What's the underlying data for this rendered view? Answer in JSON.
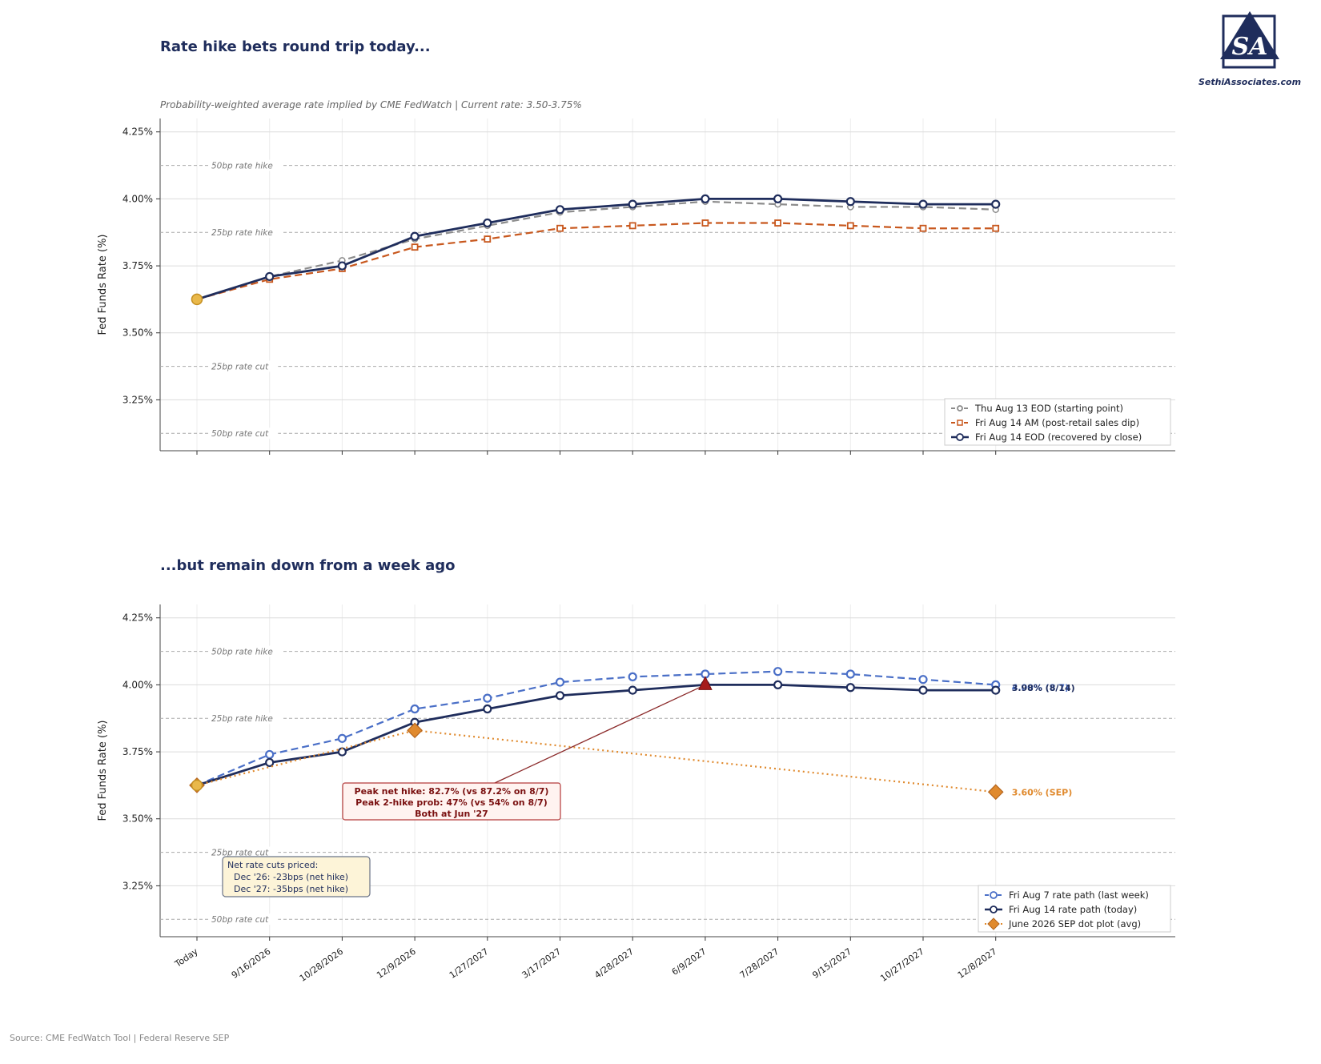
{
  "colors": {
    "navy": "#1f2d5c",
    "gray": "#8c8c8c",
    "orange": "#c8581e",
    "blue": "#4a6fc7",
    "sep": "#e08a2e",
    "gold": "#e9b84a",
    "peak": "#a61c1c"
  },
  "header": {
    "title_top": "Rate hike bets round trip today...",
    "subtitle": "Probability-weighted average rate implied by CME FedWatch  |  Current rate: 3.50-3.75%",
    "title_bottom": "...but remain down from a week ago",
    "source": "Source: CME FedWatch Tool  |  Federal Reserve SEP"
  },
  "logo": {
    "text": "SethiAssociates.com",
    "mark": "SA",
    "icon": "sethi-associates-logo-icon"
  },
  "chart_data": [
    {
      "type": "line",
      "ylabel": "Fed Funds Rate (%)",
      "ylim": [
        3.06,
        4.3
      ],
      "yticks": [
        "3.25%",
        "3.50%",
        "3.75%",
        "4.00%",
        "4.25%"
      ],
      "ytick_values": [
        3.25,
        3.5,
        3.75,
        4.0,
        4.25
      ],
      "x": [
        "Today",
        "9/16/2026",
        "10/28/2026",
        "12/9/2026",
        "1/27/2027",
        "3/17/2027",
        "4/28/2027",
        "6/9/2027",
        "7/28/2027",
        "9/15/2027",
        "10/27/2027",
        "12/8/2027"
      ],
      "x_labels_shown": false,
      "grid": true,
      "ref_lines": [
        {
          "value": 4.125,
          "label": "50bp rate hike"
        },
        {
          "value": 3.875,
          "label": "25bp rate hike"
        },
        {
          "value": 3.375,
          "label": "25bp rate cut"
        },
        {
          "value": 3.125,
          "label": "50bp rate cut"
        }
      ],
      "series": [
        {
          "name": "Thu Aug 13 EOD (starting point)",
          "color": "#8c8c8c",
          "style": "dashed",
          "marker": "circle-small",
          "values": [
            3.625,
            3.71,
            3.77,
            3.85,
            3.9,
            3.95,
            3.97,
            3.99,
            3.98,
            3.97,
            3.97,
            3.96
          ]
        },
        {
          "name": "Fri Aug 14 AM (post-retail sales dip)",
          "color": "#c8581e",
          "style": "dashed",
          "marker": "square",
          "values": [
            3.625,
            3.7,
            3.74,
            3.82,
            3.85,
            3.89,
            3.9,
            3.91,
            3.91,
            3.9,
            3.89,
            3.89
          ]
        },
        {
          "name": "Fri Aug 14 EOD (recovered by close)",
          "color": "#1f2d5c",
          "style": "solid",
          "marker": "circle",
          "values": [
            3.625,
            3.71,
            3.75,
            3.86,
            3.91,
            3.96,
            3.98,
            4.0,
            4.0,
            3.99,
            3.98,
            3.98
          ]
        }
      ],
      "start_point": 3.625,
      "legend": "bottom-right"
    },
    {
      "type": "line",
      "ylabel": "Fed Funds Rate (%)",
      "ylim": [
        3.06,
        4.3
      ],
      "yticks": [
        "3.25%",
        "3.50%",
        "3.75%",
        "4.00%",
        "4.25%"
      ],
      "ytick_values": [
        3.25,
        3.5,
        3.75,
        4.0,
        4.25
      ],
      "x": [
        "Today",
        "9/16/2026",
        "10/28/2026",
        "12/9/2026",
        "1/27/2027",
        "3/17/2027",
        "4/28/2027",
        "6/9/2027",
        "7/28/2027",
        "9/15/2027",
        "10/27/2027",
        "12/8/2027"
      ],
      "x_labels_shown": true,
      "grid": true,
      "ref_lines": [
        {
          "value": 4.125,
          "label": "50bp rate hike"
        },
        {
          "value": 3.875,
          "label": "25bp rate hike"
        },
        {
          "value": 3.375,
          "label": "25bp rate cut"
        },
        {
          "value": 3.125,
          "label": "50bp rate cut"
        }
      ],
      "series": [
        {
          "name": "Fri Aug 7 rate path (last week)",
          "color": "#4a6fc7",
          "style": "dashed",
          "marker": "circle",
          "values": [
            3.625,
            3.74,
            3.8,
            3.91,
            3.95,
            4.01,
            4.03,
            4.04,
            4.05,
            4.04,
            4.02,
            4.0
          ],
          "end_label": "4.00% (8/7)"
        },
        {
          "name": "Fri Aug 14 rate path (today)",
          "color": "#1f2d5c",
          "style": "solid",
          "marker": "circle",
          "values": [
            3.625,
            3.71,
            3.75,
            3.86,
            3.91,
            3.96,
            3.98,
            4.0,
            4.0,
            3.99,
            3.98,
            3.98
          ],
          "end_label": "3.98% (8/14)"
        },
        {
          "name": "June 2026 SEP dot plot (avg)",
          "color": "#e08a2e",
          "style": "dotted",
          "marker": "diamond",
          "points": [
            {
              "x": "Today",
              "y": 3.625
            },
            {
              "x": "12/9/2026",
              "y": 3.83
            },
            {
              "x": "12/8/2027",
              "y": 3.6
            }
          ],
          "end_label": "3.60% (SEP)"
        }
      ],
      "peak": {
        "x": "6/9/2027",
        "y": 4.0
      },
      "annotations": {
        "peak_box": [
          "Peak net hike: 82.7% (vs 87.2% on 8/7)",
          "Peak 2-hike prob: 47% (vs 54% on 8/7)",
          "Both at Jun '27"
        ],
        "cuts_box": [
          "Net rate cuts priced:",
          "Dec '26: -23bps (net hike)",
          "Dec '27: -35bps (net hike)"
        ]
      },
      "legend": "bottom-right"
    }
  ]
}
